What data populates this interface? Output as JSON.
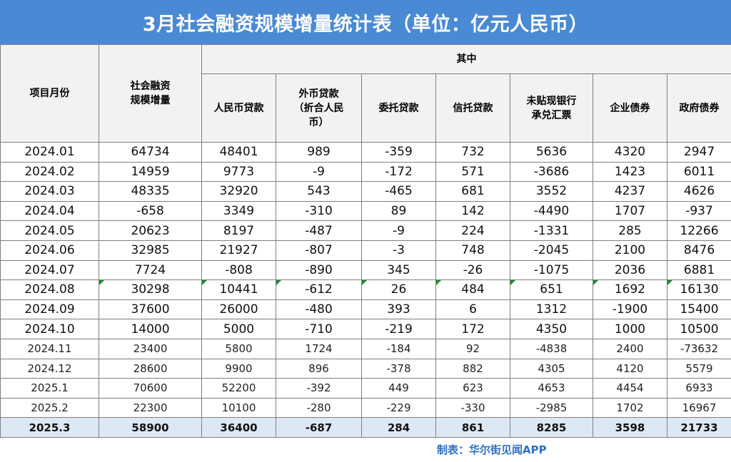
{
  "title": "3月社会融资规模增量统计表（单位：亿元人民币）",
  "headers": {
    "period": "项目月份",
    "total_line1": "社会融资",
    "total_line2": "规模增量",
    "group": "其中",
    "rmb_loans": "人民币贷款",
    "fx_loans_line1": "外币贷款",
    "fx_loans_line2": "（折合人民",
    "fx_loans_line3": "币）",
    "entrusted_loans": "委托贷款",
    "trust_loans": "信托贷款",
    "bank_acceptance_line1": "未贴现银行",
    "bank_acceptance_line2": "承兑汇票",
    "corporate_bonds": "企业债券",
    "government_bonds": "政府债券"
  },
  "rows": [
    {
      "period": "2024.01",
      "total": "64734",
      "rmb": "48401",
      "fx": "989",
      "entrusted": "-359",
      "trust": "732",
      "bills": "5636",
      "corp": "4320",
      "gov": "2947"
    },
    {
      "period": "2024.02",
      "total": "14959",
      "rmb": "9773",
      "fx": "-9",
      "entrusted": "-172",
      "trust": "571",
      "bills": "-3686",
      "corp": "1423",
      "gov": "6011"
    },
    {
      "period": "2024.03",
      "total": "48335",
      "rmb": "32920",
      "fx": "543",
      "entrusted": "-465",
      "trust": "681",
      "bills": "3552",
      "corp": "4237",
      "gov": "4626"
    },
    {
      "period": "2024.04",
      "total": "-658",
      "rmb": "3349",
      "fx": "-310",
      "entrusted": "89",
      "trust": "142",
      "bills": "-4490",
      "corp": "1707",
      "gov": "-937"
    },
    {
      "period": "2024.05",
      "total": "20623",
      "rmb": "8197",
      "fx": "-487",
      "entrusted": "-9",
      "trust": "224",
      "bills": "-1331",
      "corp": "285",
      "gov": "12266"
    },
    {
      "period": "2024.06",
      "total": "32985",
      "rmb": "21927",
      "fx": "-807",
      "entrusted": "-3",
      "trust": "748",
      "bills": "-2045",
      "corp": "2100",
      "gov": "8476"
    },
    {
      "period": "2024.07",
      "total": "7724",
      "rmb": "-808",
      "fx": "-890",
      "entrusted": "345",
      "trust": "-26",
      "bills": "-1075",
      "corp": "2036",
      "gov": "6881"
    },
    {
      "period": "2024.08",
      "total": "30298",
      "rmb": "10441",
      "fx": "-612",
      "entrusted": "26",
      "trust": "484",
      "bills": "651",
      "corp": "1692",
      "gov": "16130"
    },
    {
      "period": "2024.09",
      "total": "37600",
      "rmb": "26000",
      "fx": "-480",
      "entrusted": "393",
      "trust": "6",
      "bills": "1312",
      "corp": "-1900",
      "gov": "15400"
    },
    {
      "period": "2024.10",
      "total": "14000",
      "rmb": "5000",
      "fx": "-710",
      "entrusted": "-219",
      "trust": "172",
      "bills": "4350",
      "corp": "1000",
      "gov": "10500"
    },
    {
      "period": "2024.11",
      "total": "23400",
      "rmb": "5800",
      "fx": "1724",
      "entrusted": "-184",
      "trust": "92",
      "bills": "-4838",
      "corp": "2400",
      "gov": "-73632"
    },
    {
      "period": "2024.12",
      "total": "28600",
      "rmb": "9900",
      "fx": "896",
      "entrusted": "-378",
      "trust": "882",
      "bills": "4305",
      "corp": "4120",
      "gov": "5579"
    },
    {
      "period": "2025.1",
      "total": "70600",
      "rmb": "52200",
      "fx": "-392",
      "entrusted": "449",
      "trust": "623",
      "bills": "4653",
      "corp": "4454",
      "gov": "6933"
    },
    {
      "period": "2025.2",
      "total": "22300",
      "rmb": "10100",
      "fx": "-280",
      "entrusted": "-229",
      "trust": "-330",
      "bills": "-2985",
      "corp": "1702",
      "gov": "16967"
    }
  ],
  "total_row": {
    "period": "2025.3",
    "total": "58900",
    "rmb": "36400",
    "fx": "-687",
    "entrusted": "284",
    "trust": "861",
    "bills": "8285",
    "corp": "3598",
    "gov": "21733"
  },
  "source": "制表：华尔街见闻APP",
  "colors": {
    "title_bg": "#4a8ad4",
    "header_bg": "#f2f2f2",
    "total_bg": "#dde8f5",
    "source_text": "#2e6fc4",
    "marker": "#1c8a2c"
  }
}
